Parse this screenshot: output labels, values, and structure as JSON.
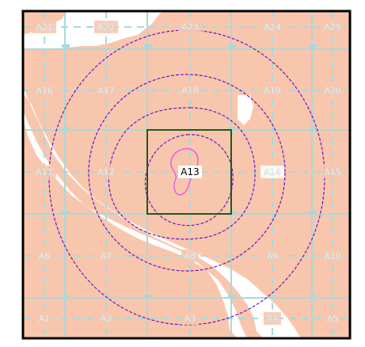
{
  "map": {
    "cells": [
      {
        "label": "A21",
        "col": 0,
        "row": 0
      },
      {
        "label": "A22",
        "col": 1,
        "row": 0
      },
      {
        "label": "A23",
        "col": 2,
        "row": 0
      },
      {
        "label": "A24",
        "col": 3,
        "row": 0
      },
      {
        "label": "A25",
        "col": 4,
        "row": 0
      },
      {
        "label": "A16",
        "col": 0,
        "row": 1
      },
      {
        "label": "A17",
        "col": 1,
        "row": 1
      },
      {
        "label": "A18",
        "col": 2,
        "row": 1
      },
      {
        "label": "A19",
        "col": 3,
        "row": 1
      },
      {
        "label": "A20",
        "col": 4,
        "row": 1
      },
      {
        "label": "A11",
        "col": 0,
        "row": 2
      },
      {
        "label": "A12",
        "col": 1,
        "row": 2
      },
      {
        "label": "A13",
        "col": 2,
        "row": 2
      },
      {
        "label": "A14",
        "col": 3,
        "row": 2
      },
      {
        "label": "A15",
        "col": 4,
        "row": 2
      },
      {
        "label": "A6",
        "col": 0,
        "row": 3
      },
      {
        "label": "A7",
        "col": 1,
        "row": 3
      },
      {
        "label": "A8",
        "col": 2,
        "row": 3
      },
      {
        "label": "A9",
        "col": 3,
        "row": 3
      },
      {
        "label": "A10",
        "col": 4,
        "row": 3
      },
      {
        "label": "A1",
        "col": 0,
        "row": 4
      },
      {
        "label": "A2",
        "col": 1,
        "row": 4
      },
      {
        "label": "A3",
        "col": 2,
        "row": 4
      },
      {
        "label": "A4",
        "col": 3,
        "row": 4
      },
      {
        "label": "A5",
        "col": 4,
        "row": 4
      }
    ],
    "highlighted_cell": "A13",
    "colors": {
      "land": "#f8c6ad",
      "water": "#ffffff",
      "grid": "#a9d9db",
      "contour": "#6a16c8",
      "inner_contour": "#e24ce8",
      "selection": "#1e5a1e",
      "frame": "#000000",
      "label": "#ffffff"
    }
  }
}
